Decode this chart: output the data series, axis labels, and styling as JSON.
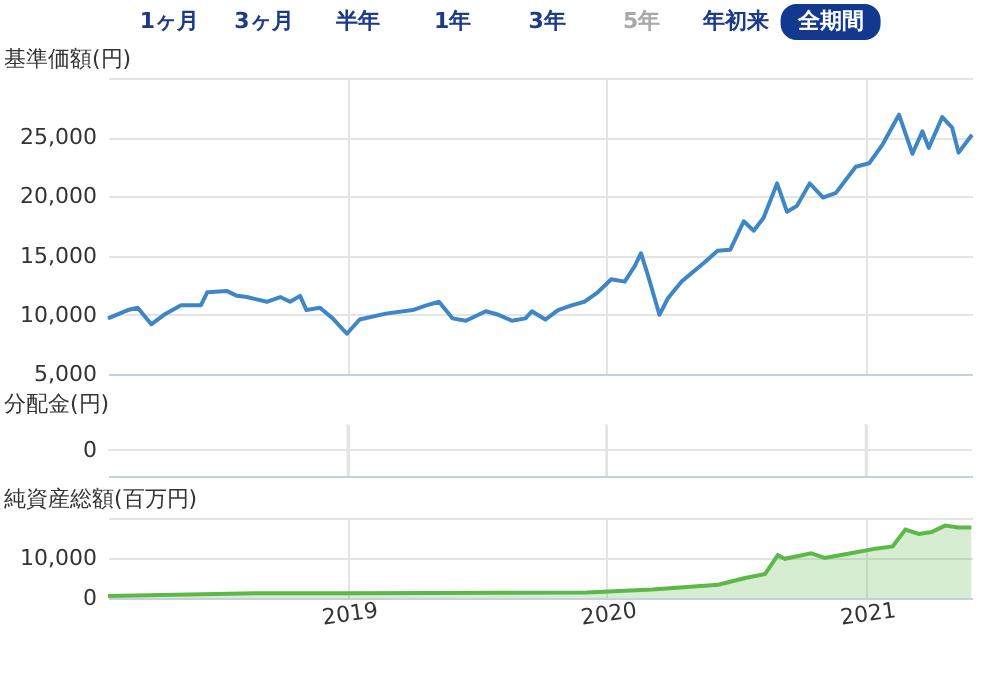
{
  "chart_data": [
    {
      "type": "line",
      "ylabel": "基準価額(円)",
      "annotations": [
        "1ヶ月",
        "3ヶ月",
        "半年",
        "1年",
        "3年",
        "5年",
        "年初来",
        "全期間"
      ],
      "xlim": [
        "2018-01-28",
        "2021-05-31"
      ],
      "xticks": [
        "2019",
        "2020",
        "2021"
      ],
      "ylim": [
        5000,
        30000
      ],
      "yticks": [
        {
          "value": 5000,
          "label": "5,000"
        },
        {
          "value": 10000,
          "label": "10,000"
        },
        {
          "value": 15000,
          "label": "15,000"
        },
        {
          "value": 20000,
          "label": "20,000"
        },
        {
          "value": 25000,
          "label": "25,000"
        },
        {
          "value": 30000,
          "label": null
        }
      ],
      "grid": true,
      "tick_labels": "y",
      "series": [
        {
          "color": "#3f87c4",
          "x": [
            "2018-01-28",
            "2018-02-25",
            "2018-03-11",
            "2018-03-30",
            "2018-04-17",
            "2018-05-11",
            "2018-06-08",
            "2018-06-17",
            "2018-07-15",
            "2018-07-29",
            "2018-08-12",
            "2018-09-09",
            "2018-09-28",
            "2018-10-12",
            "2018-10-26",
            "2018-11-04",
            "2018-11-23",
            "2018-12-11",
            "2018-12-31",
            "2019-01-18",
            "2019-02-24",
            "2019-04-03",
            "2019-04-22",
            "2019-05-10",
            "2019-05-29",
            "2019-06-17",
            "2019-07-15",
            "2019-08-02",
            "2019-08-21",
            "2019-09-09",
            "2019-09-18",
            "2019-10-07",
            "2019-10-25",
            "2019-11-13",
            "2019-12-01",
            "2019-12-20",
            "2020-01-08",
            "2020-01-27",
            "2020-02-10",
            "2020-02-19",
            "2020-02-29",
            "2020-03-16",
            "2020-03-28",
            "2020-04-16",
            "2020-05-18",
            "2020-06-06",
            "2020-06-24",
            "2020-07-13",
            "2020-07-27",
            "2020-08-10",
            "2020-08-29",
            "2020-09-12",
            "2020-09-26",
            "2020-10-14",
            "2020-11-02",
            "2020-11-20",
            "2020-12-18",
            "2021-01-06",
            "2021-01-25",
            "2021-02-17",
            "2021-03-08",
            "2021-03-22",
            "2021-03-31",
            "2021-04-19",
            "2021-05-03",
            "2021-05-12",
            "2021-05-31"
          ],
          "values": [
            9700,
            10400,
            10600,
            9200,
            10000,
            10800,
            10800,
            11900,
            12000,
            11600,
            11500,
            11100,
            11500,
            11100,
            11600,
            10400,
            10600,
            9700,
            8400,
            9600,
            10100,
            10400,
            10800,
            11100,
            9700,
            9500,
            10300,
            10000,
            9500,
            9700,
            10300,
            9600,
            10400,
            10800,
            11100,
            11900,
            13000,
            12800,
            14100,
            15200,
            13300,
            10000,
            11400,
            12800,
            14400,
            15400,
            15500,
            17900,
            17100,
            18200,
            21100,
            18700,
            19200,
            21100,
            19900,
            20300,
            22500,
            22800,
            24400,
            26900,
            23600,
            25500,
            24100,
            26700,
            25800,
            23700,
            25200
          ]
        }
      ]
    },
    {
      "type": "other",
      "ylabel": "分配金(円)",
      "annotations": [
        "0"
      ]
    },
    {
      "type": "area",
      "ylabel": "純資産総額(百万円)",
      "xlim": [
        "2018-01-28",
        "2021-05-31"
      ],
      "xticks": [
        "2019",
        "2020",
        "2021"
      ],
      "ylim": [
        0,
        20000
      ],
      "yticks": [
        0,
        {
          "value": 10000,
          "label": "10,000"
        },
        {
          "value": 20000,
          "label": null
        }
      ],
      "grid": true,
      "series": [
        {
          "color": "#5cb848",
          "x": [
            "2018-01-28",
            "2018-08-25",
            "2019-01-02",
            "2019-12-04",
            "2020-03-06",
            "2020-06-07",
            "2020-07-15",
            "2020-08-12",
            "2020-08-30",
            "2020-09-09",
            "2020-10-16",
            "2020-11-04",
            "2020-12-11",
            "2021-01-17",
            "2021-02-08",
            "2021-02-26",
            "2021-03-17",
            "2021-04-04",
            "2021-04-23",
            "2021-05-12",
            "2021-05-30"
          ],
          "values": [
            500,
            1200,
            1200,
            1400,
            2100,
            3300,
            5000,
            6000,
            10700,
            9800,
            11200,
            10000,
            11200,
            12400,
            12900,
            17100,
            16000,
            16500,
            18100,
            17600,
            17600
          ]
        }
      ]
    }
  ]
}
